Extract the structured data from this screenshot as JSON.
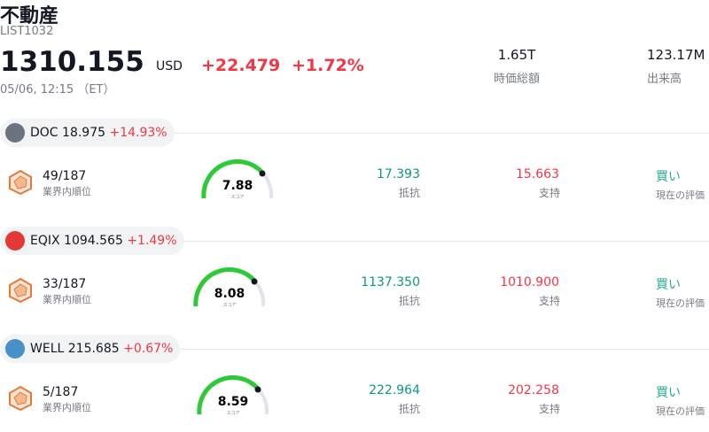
{
  "header": {
    "title": "不動産",
    "code": "LIST1032",
    "price": "1310.155",
    "currency": "USD",
    "change": "+22.479",
    "change_pct": "+1.72%",
    "time": "05/06, 12:15 （ET）"
  },
  "stats": [
    {
      "value": "1.65T",
      "label": "時価総額"
    },
    {
      "value": "123.17M",
      "label": "出来高"
    }
  ],
  "rows": [
    {
      "ticker": "DOC",
      "price": "18.975",
      "change": "+14.93%",
      "rank": "49/187",
      "rank_label": "業界内順位",
      "score": "7.88",
      "score_label": "スコア",
      "resistance": "17.393",
      "resistance_label": "抵抗",
      "support": "15.663",
      "support_label": "支持",
      "rating": "買い",
      "rating_label": "現在の評価"
    },
    {
      "ticker": "EQIX",
      "price": "1094.565",
      "change": "+1.49%",
      "rank": "33/187",
      "rank_label": "業界内順位",
      "score": "8.08",
      "score_label": "スコア",
      "resistance": "1137.350",
      "resistance_label": "抵抗",
      "support": "1010.900",
      "support_label": "支持",
      "rating": "買い",
      "rating_label": "現在の評価"
    },
    {
      "ticker": "WELL",
      "price": "215.685",
      "change": "+0.67%",
      "rank": "5/187",
      "rank_label": "業界内順位",
      "score": "8.59",
      "score_label": "スコア",
      "resistance": "222.964",
      "resistance_label": "抵抗",
      "support": "202.258",
      "support_label": "支持",
      "rating": "買い",
      "rating_label": "現在の評価"
    }
  ]
}
